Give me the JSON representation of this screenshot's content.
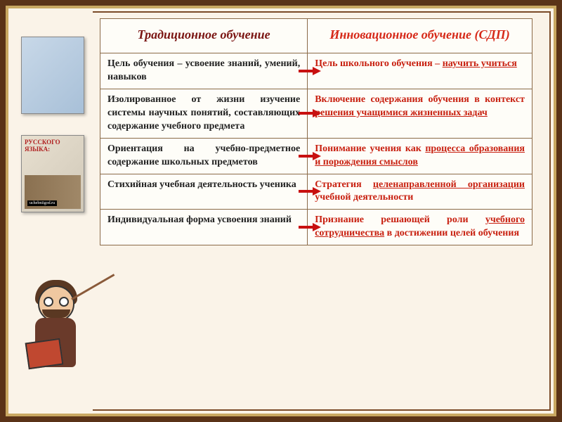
{
  "table": {
    "headers": {
      "left": "Традиционное обучение",
      "right": "Инновационное обучение (СДП)"
    },
    "rows": [
      {
        "left": "Цель обучения – усвоение знаний, умений, навыков",
        "right_pre": "Цель школьного обучения – ",
        "right_u": "научить учиться"
      },
      {
        "left": "Изолированное от жизни изучение системы научных понятий, составляющих содержание учебного предмета",
        "right_pre": "Включение содержания обучения в контекст ",
        "right_u": "решения учащимися жизненных задач"
      },
      {
        "left": "Ориентация на учебно-предметное содержание школьных предметов",
        "right_pre": "Понимание учения как ",
        "right_u": "процесса образования и порождения смыслов"
      },
      {
        "left": "Стихийная учебная деятельность ученика",
        "right_pre": "Стратегия ",
        "right_u": "целенаправленной организации",
        "right_post": " учебной деятельности"
      },
      {
        "left": "Индивидуальная форма усвоения знаний",
        "right_pre": "Признание решающей роли ",
        "right_u": "учебного сотрудничества",
        "right_post": " в достижении целей обучения"
      }
    ]
  },
  "sidebar": {
    "book1_caption": "",
    "book2_title": "РУССКОГО ЯЗЫКА:",
    "book2_tag": "uchebniigod.ru"
  },
  "colors": {
    "frame_outer": "#5a3318",
    "frame_gold": "#c9a862",
    "frame_inner": "#7a4a28",
    "page_bg": "#faf3e8",
    "table_bg": "#fefdf8",
    "table_border": "#8a6a48",
    "header_left": "#7a1412",
    "header_right": "#d62818",
    "body_left": "#222222",
    "body_right": "#c82010",
    "arrow": "#c81010"
  },
  "typography": {
    "header_fontsize": 18,
    "body_fontsize": 14,
    "font_family": "Georgia, Times New Roman, serif"
  }
}
